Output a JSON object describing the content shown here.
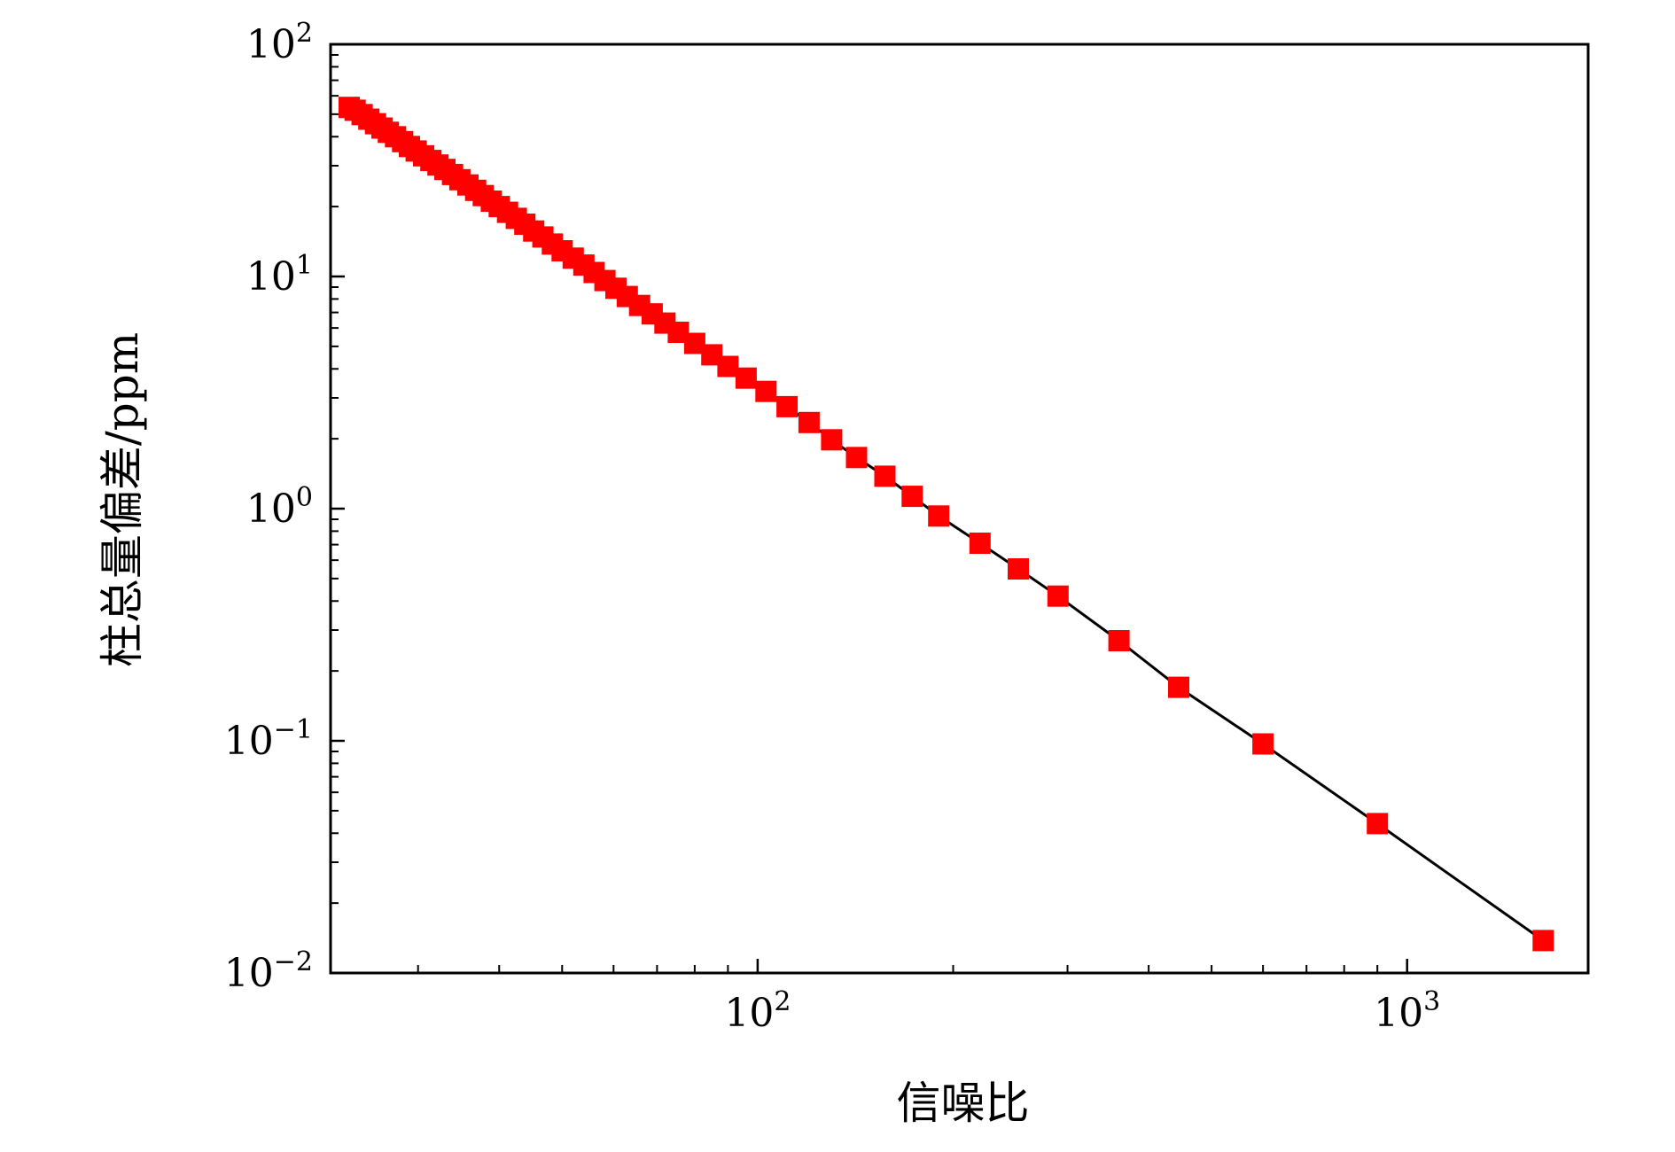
{
  "chart_data": {
    "type": "line",
    "title": "",
    "xlabel": "信噪比",
    "ylabel": "柱总量偏差/ppm",
    "x_scale": "log",
    "y_scale": "log",
    "xlim": [
      22,
      1900
    ],
    "ylim": [
      0.01,
      100
    ],
    "grid": false,
    "legend": "none",
    "x_ticks": [
      {
        "value": 100,
        "base": "10",
        "exp": "2"
      },
      {
        "value": 1000,
        "base": "10",
        "exp": "3"
      }
    ],
    "y_ticks": [
      {
        "value": 0.01,
        "base": "10",
        "exp": "−2"
      },
      {
        "value": 0.1,
        "base": "10",
        "exp": "−1"
      },
      {
        "value": 1,
        "base": "10",
        "exp": "0"
      },
      {
        "value": 10,
        "base": "10",
        "exp": "1"
      },
      {
        "value": 100,
        "base": "10",
        "exp": "2"
      }
    ],
    "colors": {
      "marker": "#ff0000",
      "line": "#000000",
      "axis": "#000000"
    },
    "series": [
      {
        "marker": "square",
        "x": [
          23.5,
          24.0,
          24.6,
          25.2,
          25.8,
          26.4,
          27.0,
          27.7,
          28.4,
          29.1,
          29.8,
          30.6,
          31.4,
          32.2,
          33.0,
          33.9,
          34.8,
          35.8,
          36.8,
          37.8,
          38.9,
          40.0,
          41.2,
          42.5,
          43.8,
          45.2,
          46.7,
          48.3,
          50.0,
          52.0,
          54.0,
          56.0,
          58.2,
          60.5,
          63.0,
          65.8,
          68.8,
          72.0,
          75.5,
          80.0,
          85.0,
          90.0,
          96.0,
          103.0,
          111.0,
          120.0,
          130.0,
          142.0,
          157.0,
          173.0,
          190.0,
          220.0,
          252.0,
          290.0,
          360.0,
          445.0,
          600.0,
          900.0,
          1620.0
        ],
        "y": [
          53.5,
          52.0,
          49.8,
          47.6,
          45.5,
          43.6,
          41.8,
          40.0,
          38.1,
          36.3,
          34.7,
          33.1,
          31.6,
          30.2,
          28.9,
          27.5,
          26.1,
          24.8,
          23.5,
          22.3,
          21.1,
          20.0,
          18.9,
          17.8,
          16.8,
          15.7,
          14.8,
          13.8,
          12.9,
          12.0,
          11.2,
          10.4,
          9.6,
          8.9,
          8.2,
          7.5,
          6.9,
          6.3,
          5.75,
          5.15,
          4.6,
          4.1,
          3.65,
          3.2,
          2.75,
          2.35,
          1.98,
          1.66,
          1.38,
          1.13,
          0.93,
          0.71,
          0.55,
          0.42,
          0.27,
          0.17,
          0.097,
          0.044,
          0.0138
        ]
      }
    ]
  }
}
